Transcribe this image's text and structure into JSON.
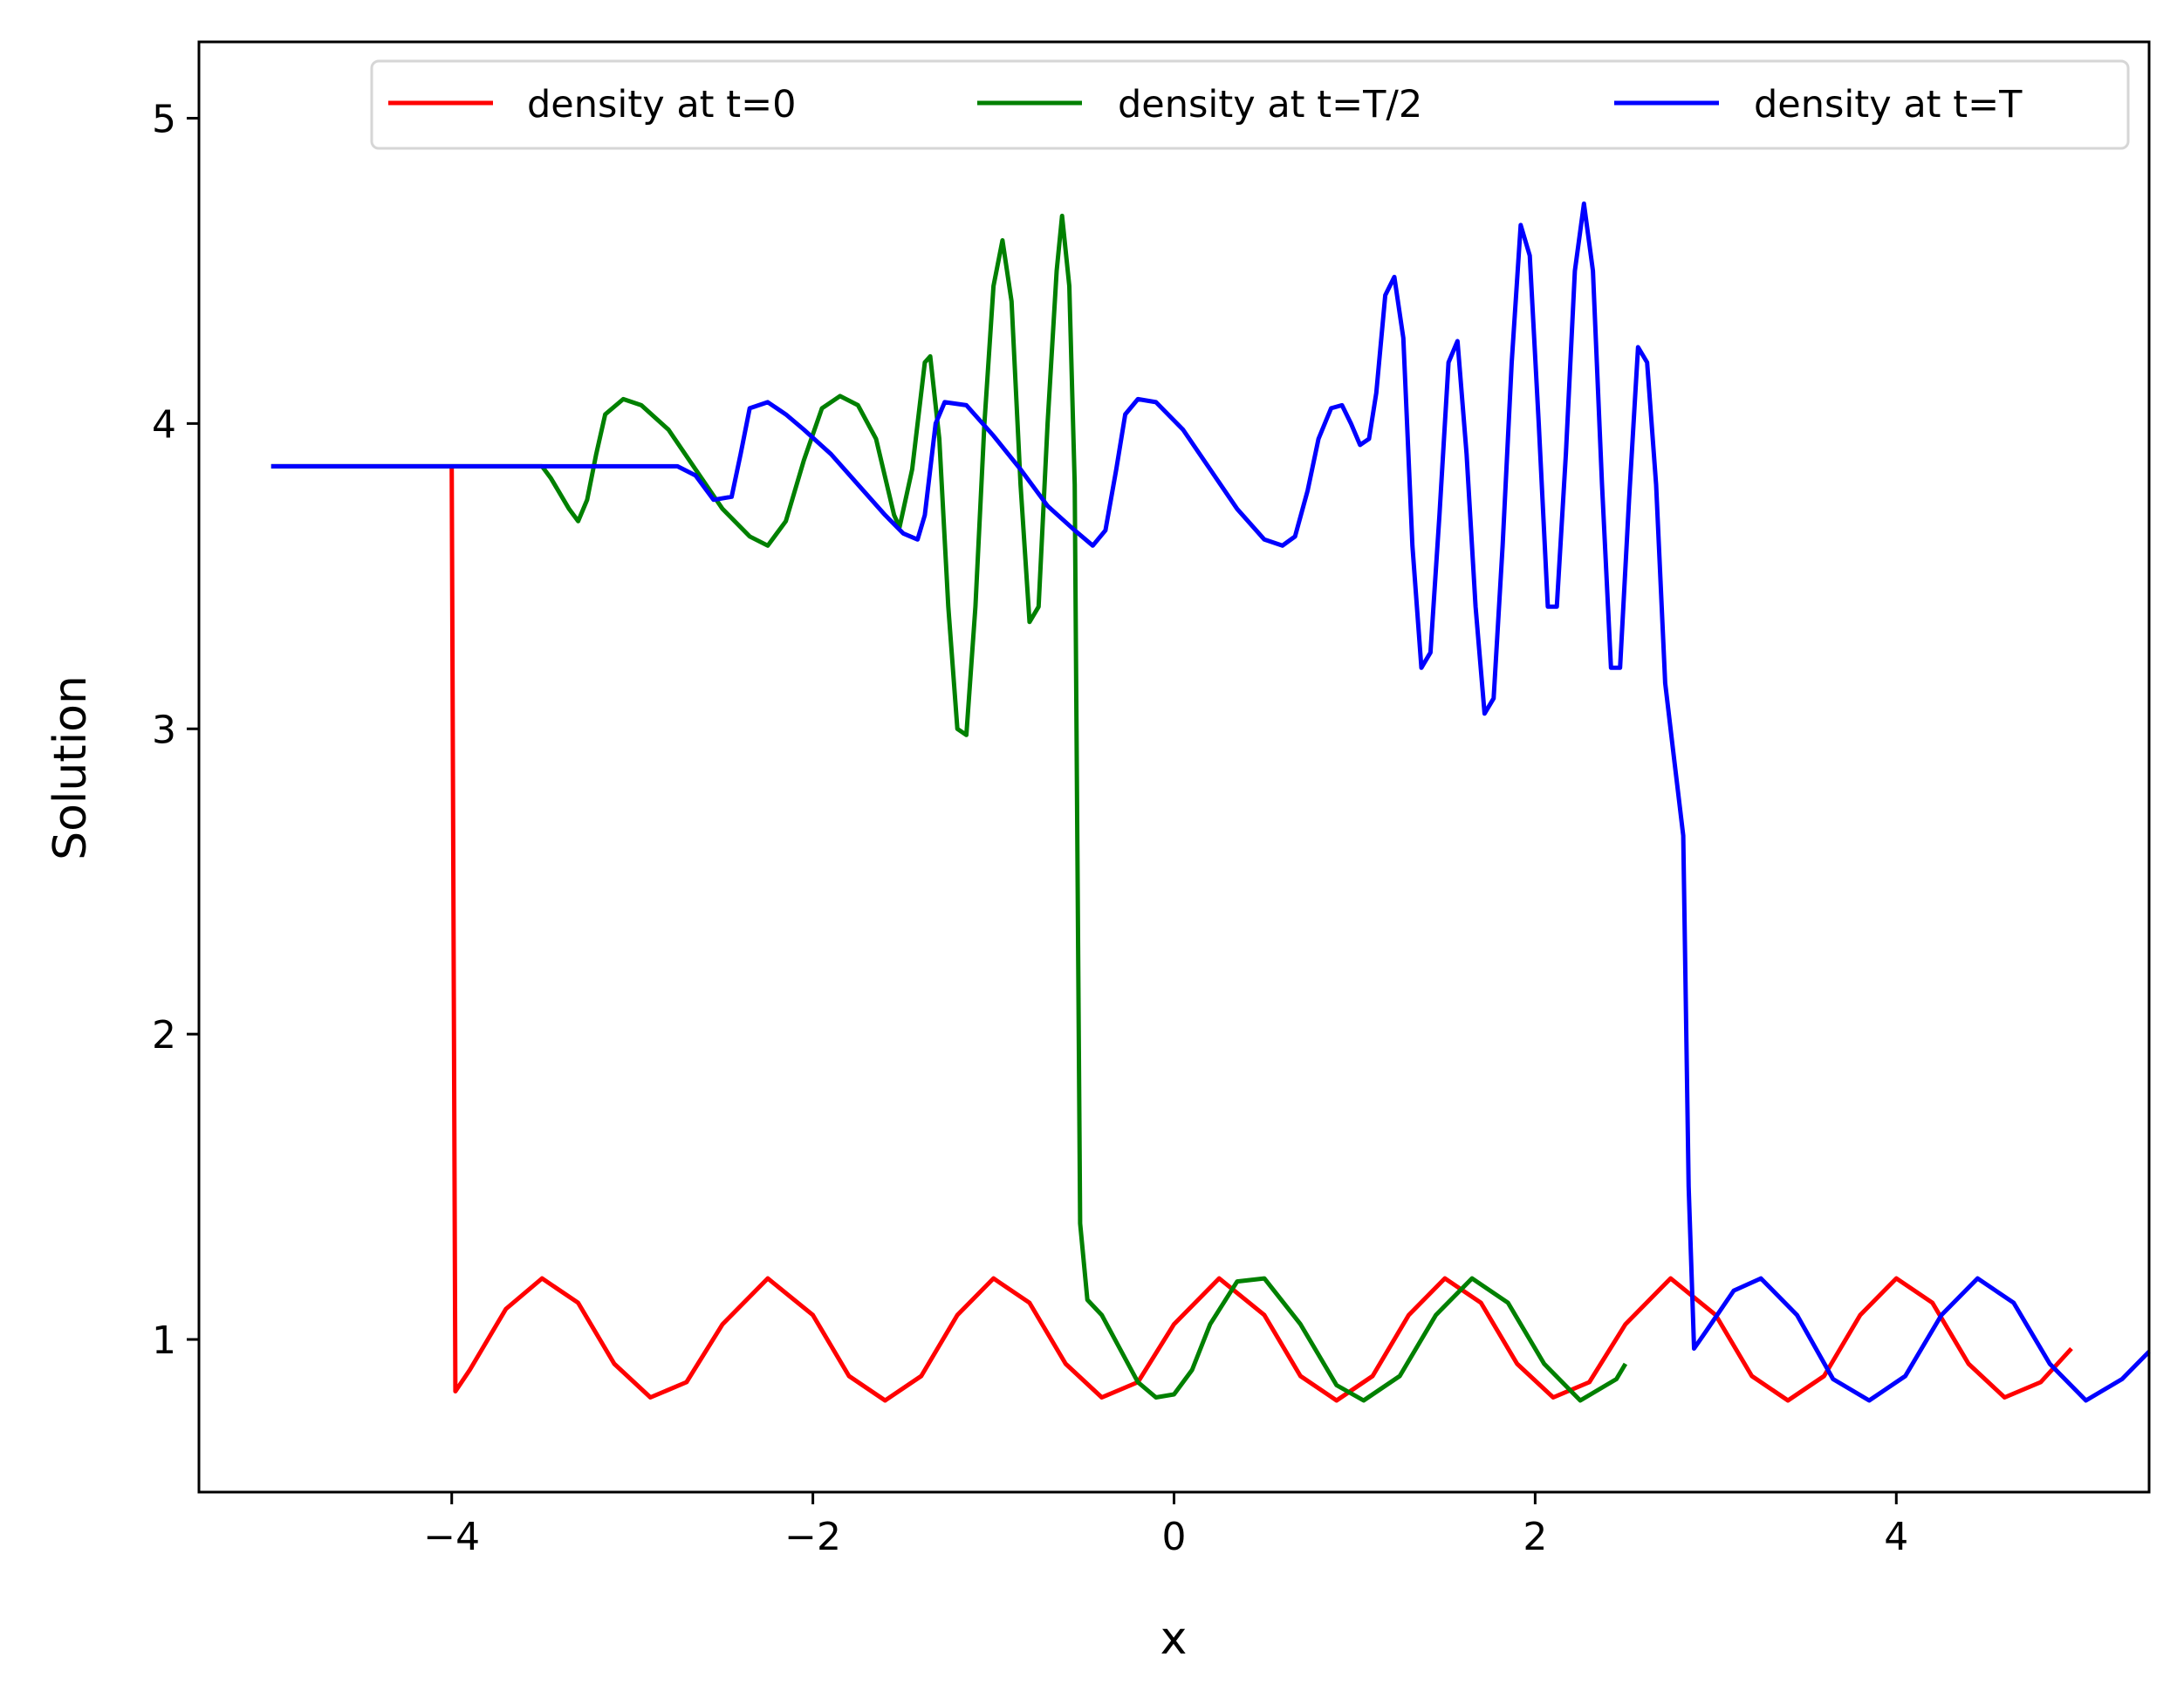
{
  "chart_data": {
    "type": "line",
    "title": "",
    "xlabel": "x",
    "ylabel": "Solution",
    "xlim": [
      -5.4,
      5.4
    ],
    "ylim": [
      0.5,
      5.25
    ],
    "xticks": [
      -4,
      -2,
      0,
      2,
      4
    ],
    "xtick_labels": [
      "−4",
      "−2",
      "0",
      "2",
      "4"
    ],
    "yticks": [
      1,
      2,
      3,
      4,
      5
    ],
    "ytick_labels": [
      "1",
      "2",
      "3",
      "4",
      "5"
    ],
    "grid": false,
    "legend_position": "top-right",
    "series": [
      {
        "name": "density at t=0",
        "color": "#ff0000",
        "points": [
          [
            -4.0,
            3.86
          ],
          [
            -3.98,
            0.83
          ],
          [
            -3.9,
            0.9
          ],
          [
            -3.7,
            1.1
          ],
          [
            -3.5,
            1.2
          ],
          [
            -3.3,
            1.12
          ],
          [
            -3.1,
            0.92
          ],
          [
            -2.9,
            0.81
          ],
          [
            -2.7,
            0.86
          ],
          [
            -2.5,
            1.05
          ],
          [
            -2.25,
            1.2
          ],
          [
            -2.0,
            1.08
          ],
          [
            -1.8,
            0.88
          ],
          [
            -1.6,
            0.8
          ],
          [
            -1.4,
            0.88
          ],
          [
            -1.2,
            1.08
          ],
          [
            -1.0,
            1.2
          ],
          [
            -0.8,
            1.12
          ],
          [
            -0.6,
            0.92
          ],
          [
            -0.4,
            0.81
          ],
          [
            -0.2,
            0.86
          ],
          [
            0.0,
            1.05
          ],
          [
            0.25,
            1.2
          ],
          [
            0.5,
            1.08
          ],
          [
            0.7,
            0.88
          ],
          [
            0.9,
            0.8
          ],
          [
            1.1,
            0.88
          ],
          [
            1.3,
            1.08
          ],
          [
            1.5,
            1.2
          ],
          [
            1.7,
            1.12
          ],
          [
            1.9,
            0.92
          ],
          [
            2.1,
            0.81
          ],
          [
            2.3,
            0.86
          ],
          [
            2.5,
            1.05
          ],
          [
            2.75,
            1.2
          ],
          [
            3.0,
            1.08
          ],
          [
            3.2,
            0.88
          ],
          [
            3.4,
            0.8
          ],
          [
            3.6,
            0.88
          ],
          [
            3.8,
            1.08
          ],
          [
            4.0,
            1.2
          ],
          [
            4.2,
            1.12
          ],
          [
            4.4,
            0.92
          ],
          [
            4.6,
            0.81
          ],
          [
            4.8,
            0.86
          ],
          [
            4.97,
            0.97
          ]
        ]
      },
      {
        "name": "density at t=T/2",
        "color": "#008000",
        "points": [
          [
            -5.0,
            3.86
          ],
          [
            -3.5,
            3.86
          ],
          [
            -3.45,
            3.82
          ],
          [
            -3.35,
            3.72
          ],
          [
            -3.3,
            3.68
          ],
          [
            -3.25,
            3.75
          ],
          [
            -3.2,
            3.9
          ],
          [
            -3.15,
            4.03
          ],
          [
            -3.05,
            4.08
          ],
          [
            -2.95,
            4.06
          ],
          [
            -2.8,
            3.98
          ],
          [
            -2.65,
            3.85
          ],
          [
            -2.5,
            3.72
          ],
          [
            -2.35,
            3.63
          ],
          [
            -2.25,
            3.6
          ],
          [
            -2.15,
            3.68
          ],
          [
            -2.05,
            3.88
          ],
          [
            -1.95,
            4.05
          ],
          [
            -1.85,
            4.09
          ],
          [
            -1.75,
            4.06
          ],
          [
            -1.65,
            3.95
          ],
          [
            -1.55,
            3.7
          ],
          [
            -1.52,
            3.66
          ],
          [
            -1.45,
            3.85
          ],
          [
            -1.38,
            4.2
          ],
          [
            -1.35,
            4.22
          ],
          [
            -1.3,
            3.95
          ],
          [
            -1.25,
            3.4
          ],
          [
            -1.2,
            3.0
          ],
          [
            -1.15,
            2.98
          ],
          [
            -1.1,
            3.4
          ],
          [
            -1.05,
            4.0
          ],
          [
            -1.0,
            4.45
          ],
          [
            -0.95,
            4.6
          ],
          [
            -0.9,
            4.4
          ],
          [
            -0.85,
            3.8
          ],
          [
            -0.8,
            3.35
          ],
          [
            -0.75,
            3.4
          ],
          [
            -0.7,
            4.0
          ],
          [
            -0.65,
            4.5
          ],
          [
            -0.62,
            4.68
          ],
          [
            -0.58,
            4.45
          ],
          [
            -0.55,
            3.8
          ],
          [
            -0.52,
            1.38
          ],
          [
            -0.48,
            1.13
          ],
          [
            -0.4,
            1.08
          ],
          [
            -0.3,
            0.97
          ],
          [
            -0.2,
            0.86
          ],
          [
            -0.1,
            0.81
          ],
          [
            0.0,
            0.82
          ],
          [
            0.1,
            0.9
          ],
          [
            0.2,
            1.05
          ],
          [
            0.35,
            1.19
          ],
          [
            0.5,
            1.2
          ],
          [
            0.7,
            1.05
          ],
          [
            0.9,
            0.85
          ],
          [
            1.05,
            0.8
          ],
          [
            1.25,
            0.88
          ],
          [
            1.45,
            1.08
          ],
          [
            1.65,
            1.2
          ],
          [
            1.85,
            1.12
          ],
          [
            2.05,
            0.92
          ],
          [
            2.25,
            0.8
          ],
          [
            2.45,
            0.87
          ],
          [
            2.5,
            0.92
          ]
        ]
      },
      {
        "name": "density at t=T",
        "color": "#0000ff",
        "points": [
          [
            -5.0,
            3.86
          ],
          [
            -2.75,
            3.86
          ],
          [
            -2.65,
            3.83
          ],
          [
            -2.55,
            3.75
          ],
          [
            -2.45,
            3.76
          ],
          [
            -2.4,
            3.9
          ],
          [
            -2.35,
            4.05
          ],
          [
            -2.25,
            4.07
          ],
          [
            -2.15,
            4.03
          ],
          [
            -2.05,
            3.98
          ],
          [
            -1.9,
            3.9
          ],
          [
            -1.75,
            3.8
          ],
          [
            -1.6,
            3.7
          ],
          [
            -1.5,
            3.64
          ],
          [
            -1.42,
            3.62
          ],
          [
            -1.38,
            3.7
          ],
          [
            -1.32,
            4.0
          ],
          [
            -1.27,
            4.07
          ],
          [
            -1.15,
            4.06
          ],
          [
            -1.0,
            3.96
          ],
          [
            -0.85,
            3.85
          ],
          [
            -0.7,
            3.73
          ],
          [
            -0.55,
            3.65
          ],
          [
            -0.45,
            3.6
          ],
          [
            -0.38,
            3.65
          ],
          [
            -0.32,
            3.85
          ],
          [
            -0.27,
            4.03
          ],
          [
            -0.2,
            4.08
          ],
          [
            -0.1,
            4.07
          ],
          [
            0.05,
            3.98
          ],
          [
            0.2,
            3.85
          ],
          [
            0.35,
            3.72
          ],
          [
            0.5,
            3.62
          ],
          [
            0.6,
            3.6
          ],
          [
            0.67,
            3.63
          ],
          [
            0.74,
            3.78
          ],
          [
            0.8,
            3.95
          ],
          [
            0.87,
            4.05
          ],
          [
            0.93,
            4.06
          ],
          [
            0.98,
            4.0
          ],
          [
            1.03,
            3.93
          ],
          [
            1.08,
            3.95
          ],
          [
            1.12,
            4.1
          ],
          [
            1.17,
            4.42
          ],
          [
            1.22,
            4.48
          ],
          [
            1.27,
            4.28
          ],
          [
            1.32,
            3.6
          ],
          [
            1.37,
            3.2
          ],
          [
            1.42,
            3.25
          ],
          [
            1.47,
            3.7
          ],
          [
            1.52,
            4.2
          ],
          [
            1.57,
            4.27
          ],
          [
            1.62,
            3.9
          ],
          [
            1.67,
            3.4
          ],
          [
            1.72,
            3.05
          ],
          [
            1.77,
            3.1
          ],
          [
            1.82,
            3.6
          ],
          [
            1.87,
            4.2
          ],
          [
            1.92,
            4.65
          ],
          [
            1.97,
            4.55
          ],
          [
            2.02,
            4.0
          ],
          [
            2.07,
            3.4
          ],
          [
            2.12,
            3.4
          ],
          [
            2.17,
            3.9
          ],
          [
            2.22,
            4.5
          ],
          [
            2.27,
            4.72
          ],
          [
            2.32,
            4.5
          ],
          [
            2.37,
            3.8
          ],
          [
            2.42,
            3.2
          ],
          [
            2.47,
            3.2
          ],
          [
            2.52,
            3.75
          ],
          [
            2.57,
            4.25
          ],
          [
            2.62,
            4.2
          ],
          [
            2.67,
            3.8
          ],
          [
            2.72,
            3.15
          ],
          [
            2.77,
            2.9
          ],
          [
            2.82,
            2.65
          ],
          [
            2.85,
            1.5
          ],
          [
            2.88,
            0.97
          ],
          [
            2.95,
            1.03
          ],
          [
            3.1,
            1.16
          ],
          [
            3.25,
            1.2
          ],
          [
            3.45,
            1.08
          ],
          [
            3.65,
            0.87
          ],
          [
            3.85,
            0.8
          ],
          [
            4.05,
            0.88
          ],
          [
            4.25,
            1.08
          ],
          [
            4.45,
            1.2
          ],
          [
            4.65,
            1.12
          ],
          [
            4.85,
            0.92
          ],
          [
            5.05,
            0.8
          ],
          [
            5.25,
            0.87
          ],
          [
            5.4,
            0.96
          ]
        ]
      }
    ]
  }
}
